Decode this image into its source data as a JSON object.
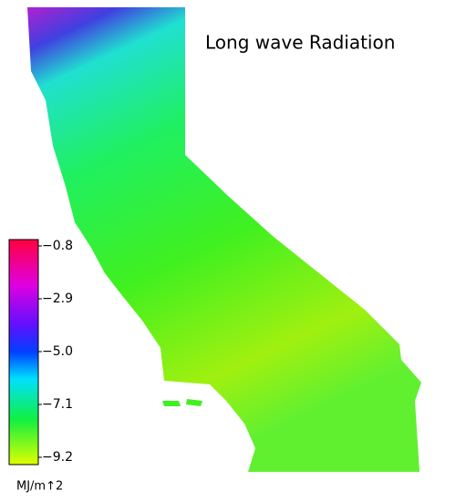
{
  "title": "Long wave Radiation",
  "colorbar": {
    "lim": [
      -9.2,
      -0.8
    ],
    "ticks": [
      -0.8,
      -2.9,
      {
        "value": -5,
        "label": "-5.0"
      },
      -7.1,
      -9.2
    ],
    "unit": "MJ/m↑2"
  }
}
